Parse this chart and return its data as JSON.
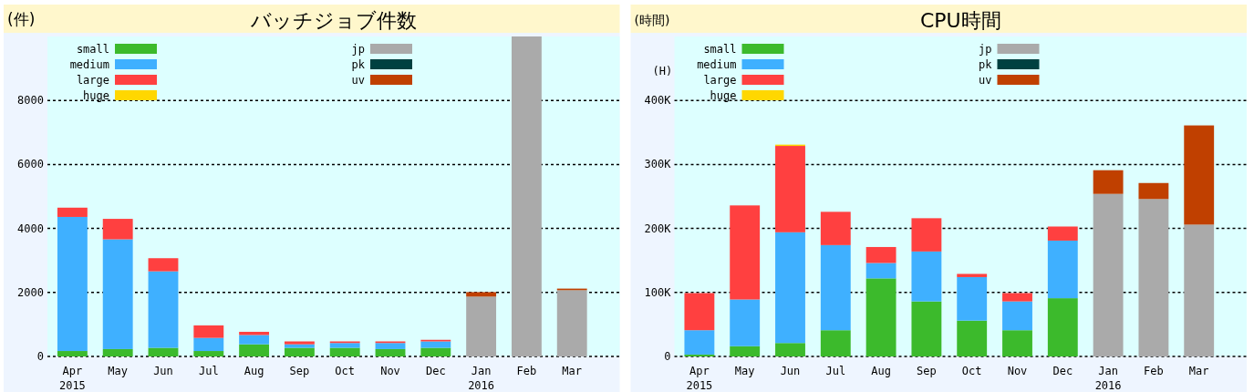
{
  "chart_data": [
    {
      "type": "bar",
      "title": "バッチジョブ件数",
      "ylabel": "(件)",
      "stacked": true,
      "grid": "y",
      "legend": "top left",
      "categories": [
        "Apr\n2015",
        "May",
        "Jun",
        "Jul",
        "Aug",
        "Sep",
        "Oct",
        "Nov",
        "Dec",
        "Jan\n2016",
        "Feb",
        "Mar"
      ],
      "ylim": [
        0,
        10000
      ],
      "yticks": [
        0,
        2000,
        4000,
        6000,
        8000
      ],
      "series": [
        {
          "name": "small",
          "color": "#3cba2c",
          "values": [
            170,
            230,
            270,
            170,
            380,
            270,
            270,
            230,
            270,
            0,
            0,
            0
          ]
        },
        {
          "name": "medium",
          "color": "#3fb0ff",
          "values": [
            4190,
            3430,
            2390,
            410,
            290,
            110,
            150,
            190,
            200,
            0,
            0,
            0
          ]
        },
        {
          "name": "large",
          "color": "#ff4040",
          "values": [
            290,
            640,
            410,
            390,
            100,
            90,
            50,
            50,
            50,
            0,
            0,
            0
          ]
        },
        {
          "name": "huge",
          "color": "#ffd700",
          "values": [
            0,
            0,
            0,
            0,
            0,
            0,
            0,
            0,
            0,
            0,
            0,
            0
          ]
        },
        {
          "name": "jp",
          "color": "#aaaaaa",
          "values": [
            0,
            0,
            0,
            0,
            0,
            0,
            0,
            0,
            0,
            1870,
            10000,
            2070
          ]
        },
        {
          "name": "pk",
          "color": "#004040",
          "values": [
            0,
            0,
            0,
            0,
            0,
            0,
            0,
            0,
            0,
            0,
            0,
            0
          ]
        },
        {
          "name": "uv",
          "color": "#c04000",
          "values": [
            0,
            0,
            0,
            0,
            0,
            0,
            0,
            0,
            0,
            140,
            0,
            50
          ]
        }
      ]
    },
    {
      "type": "bar",
      "title": "CPU時間",
      "ylabel": "(時間)",
      "stacked": true,
      "grid": "y",
      "legend": "top left",
      "annotations": [
        "(H)"
      ],
      "categories": [
        "Apr\n2015",
        "May",
        "Jun",
        "Jul",
        "Aug",
        "Sep",
        "Oct",
        "Nov",
        "Dec",
        "Jan\n2016",
        "Feb",
        "Mar"
      ],
      "ylim": [
        0,
        500000
      ],
      "yticks": [
        0,
        {
          "value": 100000,
          "label": "100K"
        },
        {
          "value": 200000,
          "label": "200K"
        },
        {
          "value": 300000,
          "label": "300K"
        },
        {
          "value": 400000,
          "label": "400K"
        }
      ],
      "series": [
        {
          "name": "small",
          "color": "#3cba2c",
          "values": [
            3000,
            16000,
            21000,
            41000,
            122000,
            86000,
            56000,
            41000,
            91000,
            0,
            0,
            0
          ]
        },
        {
          "name": "medium",
          "color": "#3fb0ff",
          "values": [
            38000,
            73000,
            173000,
            133000,
            24000,
            78000,
            68000,
            45000,
            90000,
            0,
            0,
            0
          ]
        },
        {
          "name": "large",
          "color": "#ff4040",
          "values": [
            58000,
            147000,
            135000,
            52000,
            25000,
            52000,
            5000,
            13000,
            22000,
            0,
            0,
            0
          ]
        },
        {
          "name": "huge",
          "color": "#ffd700",
          "values": [
            0,
            0,
            2000,
            0,
            0,
            0,
            0,
            0,
            0,
            0,
            0,
            0
          ]
        },
        {
          "name": "jp",
          "color": "#aaaaaa",
          "values": [
            0,
            0,
            0,
            0,
            0,
            0,
            0,
            0,
            0,
            254000,
            246000,
            206000
          ]
        },
        {
          "name": "pk",
          "color": "#004040",
          "values": [
            0,
            0,
            0,
            0,
            0,
            0,
            0,
            0,
            0,
            0,
            0,
            0
          ]
        },
        {
          "name": "uv",
          "color": "#c04000",
          "values": [
            0,
            0,
            0,
            0,
            0,
            0,
            0,
            0,
            0,
            37000,
            25000,
            155000
          ]
        }
      ]
    }
  ]
}
